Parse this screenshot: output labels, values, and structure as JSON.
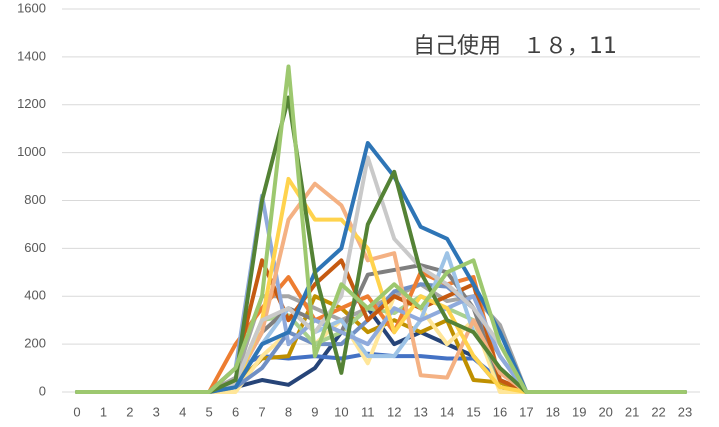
{
  "chart_data": {
    "type": "line",
    "title": "自己使用　１８，11",
    "categories": [
      "0",
      "1",
      "2",
      "3",
      "4",
      "5",
      "6",
      "7",
      "8",
      "9",
      "10",
      "11",
      "12",
      "13",
      "14",
      "15",
      "16",
      "17",
      "18",
      "19",
      "20",
      "21",
      "22",
      "23"
    ],
    "ylim": [
      0,
      1600
    ],
    "yticks": [
      0,
      200,
      400,
      600,
      800,
      1000,
      1200,
      1400,
      1600
    ],
    "grid": true,
    "series": [
      {
        "color": "#264478",
        "values": [
          0,
          0,
          0,
          0,
          0,
          0,
          20,
          50,
          30,
          100,
          250,
          350,
          200,
          250,
          200,
          150,
          20,
          0,
          0,
          0,
          0,
          0,
          0,
          0
        ]
      },
      {
        "color": "#4472c4",
        "values": [
          0,
          0,
          0,
          0,
          0,
          0,
          100,
          150,
          140,
          150,
          140,
          160,
          150,
          150,
          140,
          140,
          50,
          0,
          0,
          0,
          0,
          0,
          0,
          0
        ]
      },
      {
        "color": "#bf9000",
        "values": [
          0,
          0,
          0,
          0,
          0,
          0,
          30,
          140,
          150,
          400,
          350,
          250,
          300,
          250,
          300,
          50,
          40,
          0,
          0,
          0,
          0,
          0,
          0,
          0
        ]
      },
      {
        "color": "#ffe699",
        "values": [
          0,
          0,
          0,
          0,
          0,
          0,
          0,
          150,
          250,
          200,
          300,
          120,
          400,
          350,
          200,
          300,
          0,
          0,
          0,
          0,
          0,
          0,
          0,
          0
        ]
      },
      {
        "color": "#a5a5a5",
        "values": [
          0,
          0,
          0,
          0,
          0,
          0,
          60,
          400,
          400,
          350,
          300,
          350,
          400,
          450,
          380,
          400,
          280,
          0,
          0,
          0,
          0,
          0,
          0,
          0
        ]
      },
      {
        "color": "#6f8fc4",
        "values": [
          0,
          0,
          0,
          0,
          0,
          0,
          20,
          100,
          250,
          200,
          200,
          300,
          420,
          450,
          440,
          350,
          150,
          0,
          0,
          0,
          0,
          0,
          0,
          0
        ]
      },
      {
        "color": "#a9d18e",
        "values": [
          0,
          0,
          0,
          0,
          0,
          0,
          40,
          300,
          320,
          200,
          250,
          350,
          330,
          400,
          350,
          300,
          50,
          0,
          0,
          0,
          0,
          0,
          0,
          0
        ]
      },
      {
        "color": "#ed7d31",
        "values": [
          0,
          0,
          0,
          0,
          0,
          0,
          200,
          350,
          480,
          300,
          350,
          400,
          250,
          500,
          450,
          480,
          50,
          0,
          0,
          0,
          0,
          0,
          0,
          0
        ]
      },
      {
        "color": "#7f7f7f",
        "values": [
          0,
          0,
          0,
          0,
          0,
          0,
          50,
          250,
          350,
          300,
          250,
          490,
          510,
          530,
          500,
          350,
          50,
          0,
          0,
          0,
          0,
          0,
          0,
          0
        ]
      },
      {
        "color": "#c55a11",
        "values": [
          0,
          0,
          0,
          0,
          0,
          0,
          100,
          550,
          300,
          450,
          550,
          300,
          400,
          350,
          400,
          450,
          50,
          0,
          0,
          0,
          0,
          0,
          0,
          0
        ]
      },
      {
        "color": "#9dc3e6",
        "values": [
          0,
          0,
          0,
          0,
          0,
          0,
          30,
          200,
          350,
          250,
          300,
          150,
          150,
          300,
          580,
          250,
          100,
          0,
          0,
          0,
          0,
          0,
          0,
          0
        ]
      },
      {
        "color": "#8faadc",
        "values": [
          0,
          0,
          0,
          0,
          0,
          0,
          100,
          820,
          200,
          300,
          250,
          200,
          350,
          300,
          350,
          400,
          150,
          0,
          0,
          0,
          0,
          0,
          0,
          0
        ]
      },
      {
        "color": "#f4b183",
        "values": [
          0,
          0,
          0,
          0,
          0,
          0,
          50,
          250,
          720,
          870,
          780,
          550,
          580,
          70,
          60,
          300,
          80,
          0,
          0,
          0,
          0,
          0,
          0,
          0
        ]
      },
      {
        "color": "#ffd34d",
        "values": [
          0,
          0,
          0,
          0,
          0,
          0,
          20,
          300,
          890,
          720,
          720,
          600,
          250,
          400,
          350,
          150,
          20,
          0,
          0,
          0,
          0,
          0,
          0,
          0
        ]
      },
      {
        "color": "#c9c9c9",
        "values": [
          0,
          0,
          0,
          0,
          0,
          0,
          40,
          300,
          350,
          250,
          400,
          980,
          640,
          520,
          450,
          350,
          200,
          0,
          0,
          0,
          0,
          0,
          0,
          0
        ]
      },
      {
        "color": "#2e75b6",
        "values": [
          0,
          0,
          0,
          0,
          0,
          0,
          20,
          200,
          250,
          500,
          600,
          1040,
          900,
          690,
          640,
          450,
          250,
          0,
          0,
          0,
          0,
          0,
          0,
          0
        ]
      },
      {
        "color": "#548235",
        "values": [
          0,
          0,
          0,
          0,
          0,
          0,
          50,
          800,
          1230,
          500,
          80,
          700,
          920,
          500,
          300,
          250,
          100,
          0,
          0,
          0,
          0,
          0,
          0,
          0
        ]
      },
      {
        "color": "#9dc86f",
        "values": [
          0,
          0,
          0,
          0,
          0,
          0,
          100,
          400,
          1360,
          150,
          450,
          350,
          450,
          350,
          500,
          550,
          200,
          0,
          0,
          0,
          0,
          0,
          0,
          0
        ]
      }
    ]
  }
}
